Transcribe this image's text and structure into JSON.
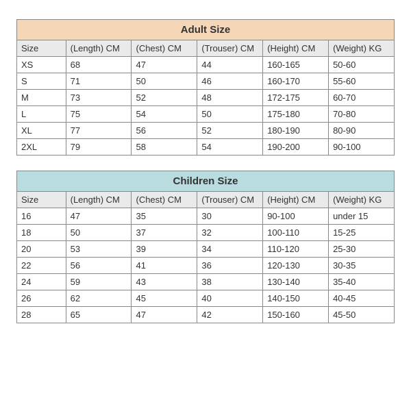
{
  "adult_table": {
    "title": "Adult Size",
    "title_bg": "#f5d7b8",
    "header_bg": "#eaeaea",
    "border_color": "#888888",
    "columns": [
      "Size",
      "(Length) CM",
      "(Chest) CM",
      "(Trouser) CM",
      "(Height) CM",
      "(Weight) KG"
    ],
    "rows": [
      [
        "XS",
        "68",
        "47",
        "44",
        "160-165",
        "50-60"
      ],
      [
        "S",
        "71",
        "50",
        "46",
        "160-170",
        "55-60"
      ],
      [
        "M",
        "73",
        "52",
        "48",
        "172-175",
        "60-70"
      ],
      [
        "L",
        "75",
        "54",
        "50",
        "175-180",
        "70-80"
      ],
      [
        "XL",
        "77",
        "56",
        "52",
        "180-190",
        "80-90"
      ],
      [
        "2XL",
        "79",
        "58",
        "54",
        "190-200",
        "90-100"
      ]
    ]
  },
  "children_table": {
    "title": "Children Size",
    "title_bg": "#b8dce0",
    "header_bg": "#eaeaea",
    "border_color": "#888888",
    "columns": [
      "Size",
      "(Length) CM",
      "(Chest) CM",
      "(Trouser) CM",
      "(Height) CM",
      "(Weight) KG"
    ],
    "rows": [
      [
        "16",
        "47",
        "35",
        "30",
        "90-100",
        "under 15"
      ],
      [
        "18",
        "50",
        "37",
        "32",
        "100-110",
        "15-25"
      ],
      [
        "20",
        "53",
        "39",
        "34",
        "110-120",
        "25-30"
      ],
      [
        "22",
        "56",
        "41",
        "36",
        "120-130",
        "30-35"
      ],
      [
        "24",
        "59",
        "43",
        "38",
        "130-140",
        "35-40"
      ],
      [
        "26",
        "62",
        "45",
        "40",
        "140-150",
        "40-45"
      ],
      [
        "28",
        "65",
        "47",
        "42",
        "150-160",
        "45-50"
      ]
    ]
  }
}
